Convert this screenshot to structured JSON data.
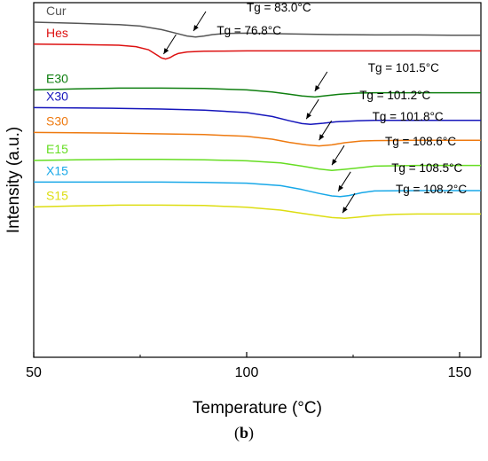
{
  "chart_data": {
    "type": "line",
    "title": "",
    "xlabel": "Temperature (°C)",
    "ylabel": "Intensity (a.u.)",
    "xlim": [
      50,
      155
    ],
    "xticks": [
      50,
      100,
      150
    ],
    "y_ticks_shown": false,
    "grid": false,
    "legend": "none; series names are printed at the left end of each curve",
    "series": [
      {
        "name": "Cur",
        "color": "#555555",
        "tg_label": "Tg = 83.0°C",
        "tg_point": [
          87.5,
          0.095
        ],
        "points": [
          [
            50,
            0.055
          ],
          [
            60,
            0.058
          ],
          [
            70,
            0.062
          ],
          [
            75,
            0.066
          ],
          [
            80,
            0.076
          ],
          [
            84,
            0.088
          ],
          [
            86,
            0.094
          ],
          [
            88,
            0.097
          ],
          [
            90,
            0.094
          ],
          [
            92,
            0.09
          ],
          [
            95,
            0.087
          ],
          [
            100,
            0.086
          ],
          [
            110,
            0.088
          ],
          [
            120,
            0.09
          ],
          [
            130,
            0.091
          ],
          [
            140,
            0.091
          ],
          [
            150,
            0.092
          ],
          [
            155,
            0.092
          ]
        ]
      },
      {
        "name": "Hes",
        "color": "#dd1111",
        "tg_label": "Tg = 76.8°C",
        "tg_point": [
          80.5,
          0.16
        ],
        "points": [
          [
            50,
            0.117
          ],
          [
            60,
            0.118
          ],
          [
            70,
            0.12
          ],
          [
            74,
            0.124
          ],
          [
            77,
            0.133
          ],
          [
            79,
            0.148
          ],
          [
            80,
            0.156
          ],
          [
            81,
            0.159
          ],
          [
            82,
            0.155
          ],
          [
            83,
            0.148
          ],
          [
            84,
            0.143
          ],
          [
            86,
            0.139
          ],
          [
            90,
            0.137
          ],
          [
            100,
            0.136
          ],
          [
            110,
            0.136
          ],
          [
            120,
            0.136
          ],
          [
            130,
            0.136
          ],
          [
            140,
            0.136
          ],
          [
            150,
            0.136
          ],
          [
            155,
            0.136
          ]
        ]
      },
      {
        "name": "E30",
        "color": "#0f7f10",
        "tg_label": "Tg = 101.5°C",
        "tg_point": [
          116,
          0.265
        ],
        "points": [
          [
            50,
            0.246
          ],
          [
            60,
            0.243
          ],
          [
            70,
            0.241
          ],
          [
            80,
            0.241
          ],
          [
            90,
            0.242
          ],
          [
            100,
            0.246
          ],
          [
            106,
            0.252
          ],
          [
            110,
            0.258
          ],
          [
            113,
            0.263
          ],
          [
            116,
            0.266
          ],
          [
            119,
            0.262
          ],
          [
            122,
            0.258
          ],
          [
            126,
            0.255
          ],
          [
            130,
            0.254
          ],
          [
            140,
            0.254
          ],
          [
            150,
            0.254
          ],
          [
            155,
            0.254
          ]
        ]
      },
      {
        "name": "X30",
        "color": "#1515bb",
        "tg_label": "Tg = 101.2°C",
        "tg_point": [
          114,
          0.343
        ],
        "points": [
          [
            50,
            0.296
          ],
          [
            60,
            0.297
          ],
          [
            70,
            0.298
          ],
          [
            80,
            0.3
          ],
          [
            90,
            0.303
          ],
          [
            100,
            0.31
          ],
          [
            106,
            0.321
          ],
          [
            110,
            0.333
          ],
          [
            113,
            0.341
          ],
          [
            115,
            0.343
          ],
          [
            118,
            0.34
          ],
          [
            121,
            0.336
          ],
          [
            126,
            0.333
          ],
          [
            130,
            0.332
          ],
          [
            140,
            0.332
          ],
          [
            150,
            0.332
          ],
          [
            155,
            0.332
          ]
        ]
      },
      {
        "name": "S30",
        "color": "#ee7a10",
        "tg_label": "Tg = 101.8°C",
        "tg_point": [
          117,
          0.403
        ],
        "points": [
          [
            50,
            0.366
          ],
          [
            60,
            0.367
          ],
          [
            70,
            0.368
          ],
          [
            80,
            0.37
          ],
          [
            90,
            0.372
          ],
          [
            100,
            0.377
          ],
          [
            106,
            0.385
          ],
          [
            110,
            0.394
          ],
          [
            114,
            0.401
          ],
          [
            117,
            0.404
          ],
          [
            120,
            0.401
          ],
          [
            123,
            0.395
          ],
          [
            127,
            0.39
          ],
          [
            130,
            0.389
          ],
          [
            140,
            0.388
          ],
          [
            150,
            0.388
          ],
          [
            155,
            0.388
          ]
        ]
      },
      {
        "name": "E15",
        "color": "#66dd22",
        "tg_label": "Tg = 108.6°C",
        "tg_point": [
          120,
          0.473
        ],
        "points": [
          [
            50,
            0.445
          ],
          [
            60,
            0.443
          ],
          [
            70,
            0.442
          ],
          [
            80,
            0.442
          ],
          [
            90,
            0.443
          ],
          [
            100,
            0.446
          ],
          [
            108,
            0.452
          ],
          [
            113,
            0.461
          ],
          [
            117,
            0.469
          ],
          [
            120,
            0.473
          ],
          [
            123,
            0.47
          ],
          [
            127,
            0.465
          ],
          [
            130,
            0.461
          ],
          [
            140,
            0.459
          ],
          [
            150,
            0.459
          ],
          [
            155,
            0.459
          ]
        ]
      },
      {
        "name": "X15",
        "color": "#18a8e8",
        "tg_label": "Tg = 108.5°C",
        "tg_point": [
          121.5,
          0.547
        ],
        "points": [
          [
            50,
            0.506
          ],
          [
            60,
            0.506
          ],
          [
            70,
            0.506
          ],
          [
            80,
            0.506
          ],
          [
            90,
            0.507
          ],
          [
            100,
            0.509
          ],
          [
            108,
            0.516
          ],
          [
            113,
            0.527
          ],
          [
            117,
            0.538
          ],
          [
            120,
            0.545
          ],
          [
            122,
            0.547
          ],
          [
            124,
            0.544
          ],
          [
            127,
            0.536
          ],
          [
            130,
            0.531
          ],
          [
            140,
            0.53
          ],
          [
            150,
            0.53
          ],
          [
            155,
            0.53
          ]
        ]
      },
      {
        "name": "S15",
        "color": "#dddd11",
        "tg_label": "Tg = 108.2°C",
        "tg_point": [
          122.5,
          0.608
        ],
        "points": [
          [
            50,
            0.576
          ],
          [
            60,
            0.573
          ],
          [
            70,
            0.571
          ],
          [
            80,
            0.571
          ],
          [
            90,
            0.572
          ],
          [
            100,
            0.577
          ],
          [
            108,
            0.585
          ],
          [
            113,
            0.594
          ],
          [
            117,
            0.601
          ],
          [
            120,
            0.606
          ],
          [
            123,
            0.608
          ],
          [
            126,
            0.605
          ],
          [
            130,
            0.6
          ],
          [
            135,
            0.597
          ],
          [
            140,
            0.596
          ],
          [
            150,
            0.596
          ],
          [
            155,
            0.596
          ]
        ]
      }
    ]
  },
  "caption": {
    "open": "(",
    "letter": "b",
    "close": ")"
  }
}
